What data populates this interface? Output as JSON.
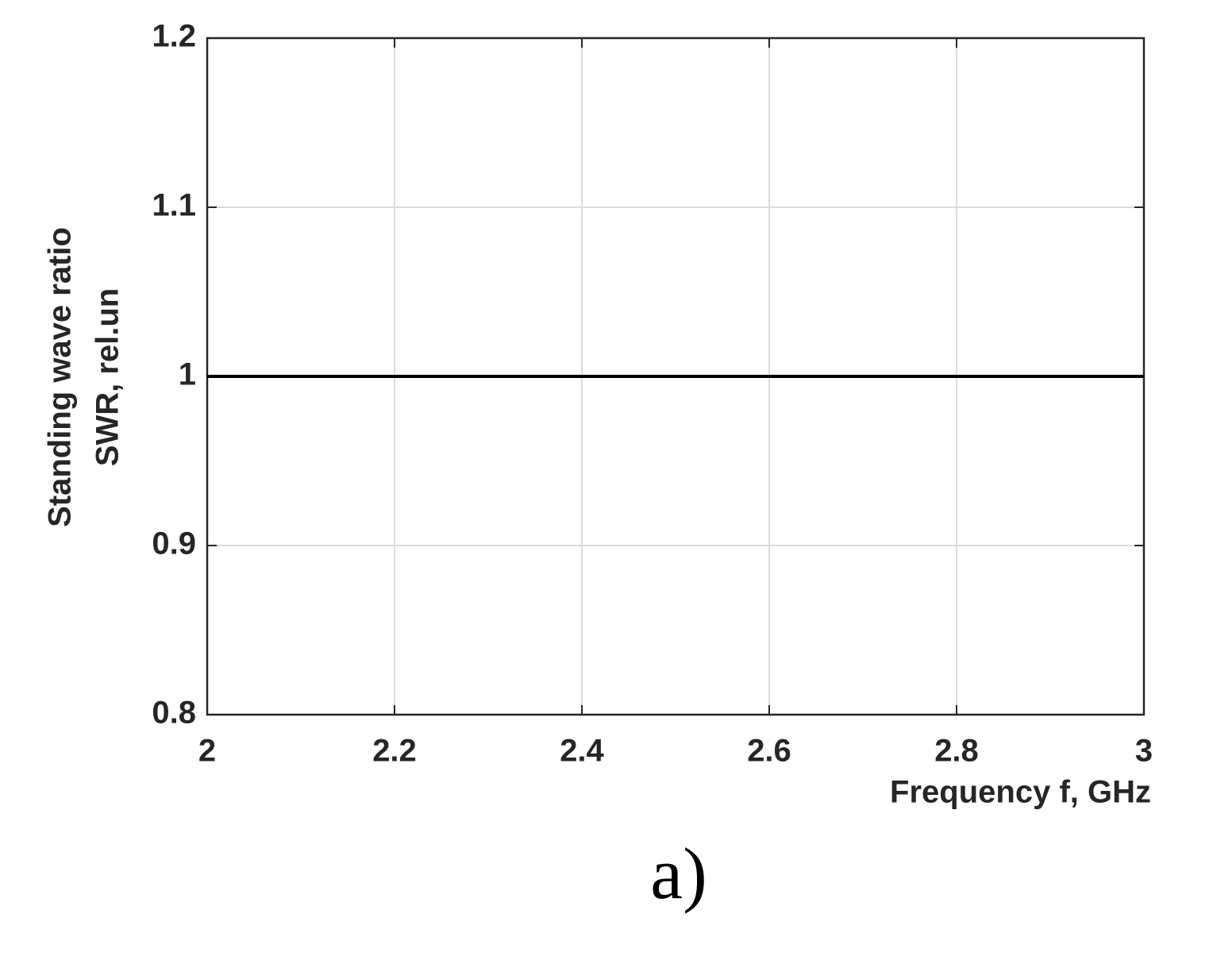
{
  "chart_data": {
    "type": "line",
    "xlabel": "Frequency f, GHz",
    "ylabel": [
      "Standing wave ratio",
      "SWR, rel.un"
    ],
    "caption": "a)",
    "x": [
      2,
      3
    ],
    "values": [
      1,
      1
    ],
    "color": "#000000",
    "xlim": [
      2,
      3
    ],
    "xticks": [
      2,
      2.2,
      2.4,
      2.6,
      2.8,
      3
    ],
    "ylim": [
      0.8,
      1.2
    ],
    "yticks": [
      0.8,
      0.9,
      1,
      1.1,
      1.2
    ],
    "grid": true
  }
}
